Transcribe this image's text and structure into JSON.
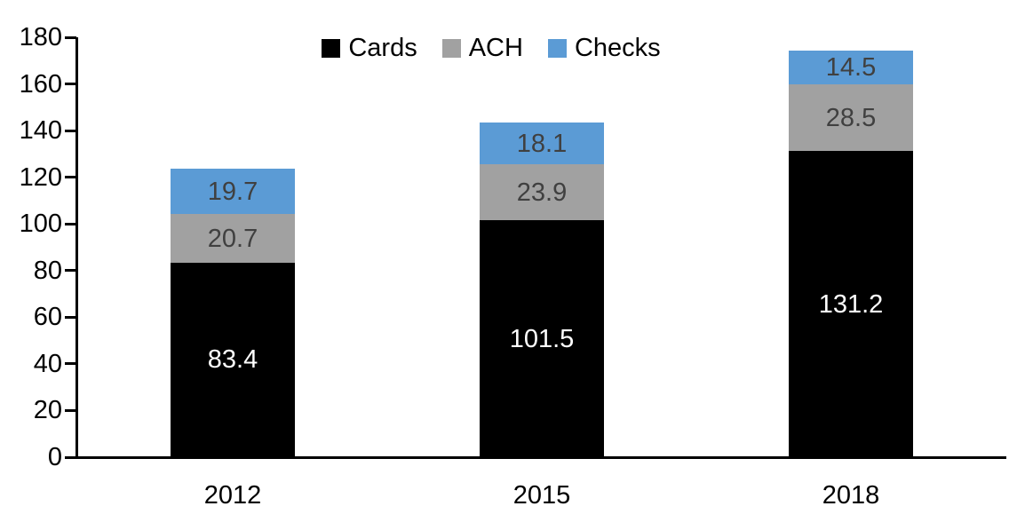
{
  "chart_data": {
    "type": "bar",
    "stacked": true,
    "title": "",
    "xlabel": "",
    "ylabel": "",
    "categories": [
      "2012",
      "2015",
      "2018"
    ],
    "series": [
      {
        "name": "Cards",
        "color": "#000000",
        "label_color": "#ffffff",
        "values": [
          83.4,
          101.5,
          131.2
        ]
      },
      {
        "name": "ACH",
        "color": "#a1a1a1",
        "label_color": "#404040",
        "values": [
          20.7,
          23.9,
          28.5
        ]
      },
      {
        "name": "Checks",
        "color": "#5b9bd5",
        "label_color": "#404040",
        "values": [
          19.7,
          18.1,
          14.5
        ]
      }
    ],
    "stack_totals": [
      123.8,
      143.5,
      174.2
    ],
    "ylim": [
      0,
      180
    ],
    "ytick_step": 20,
    "y_tick_labels": [
      "0",
      "20",
      "40",
      "60",
      "80",
      "100",
      "120",
      "140",
      "160",
      "180"
    ],
    "legend": {
      "position": "top-center",
      "entries": [
        "Cards",
        "ACH",
        "Checks"
      ]
    },
    "grid": "off",
    "axis_color": "#000000",
    "background_color": "#ffffff"
  }
}
